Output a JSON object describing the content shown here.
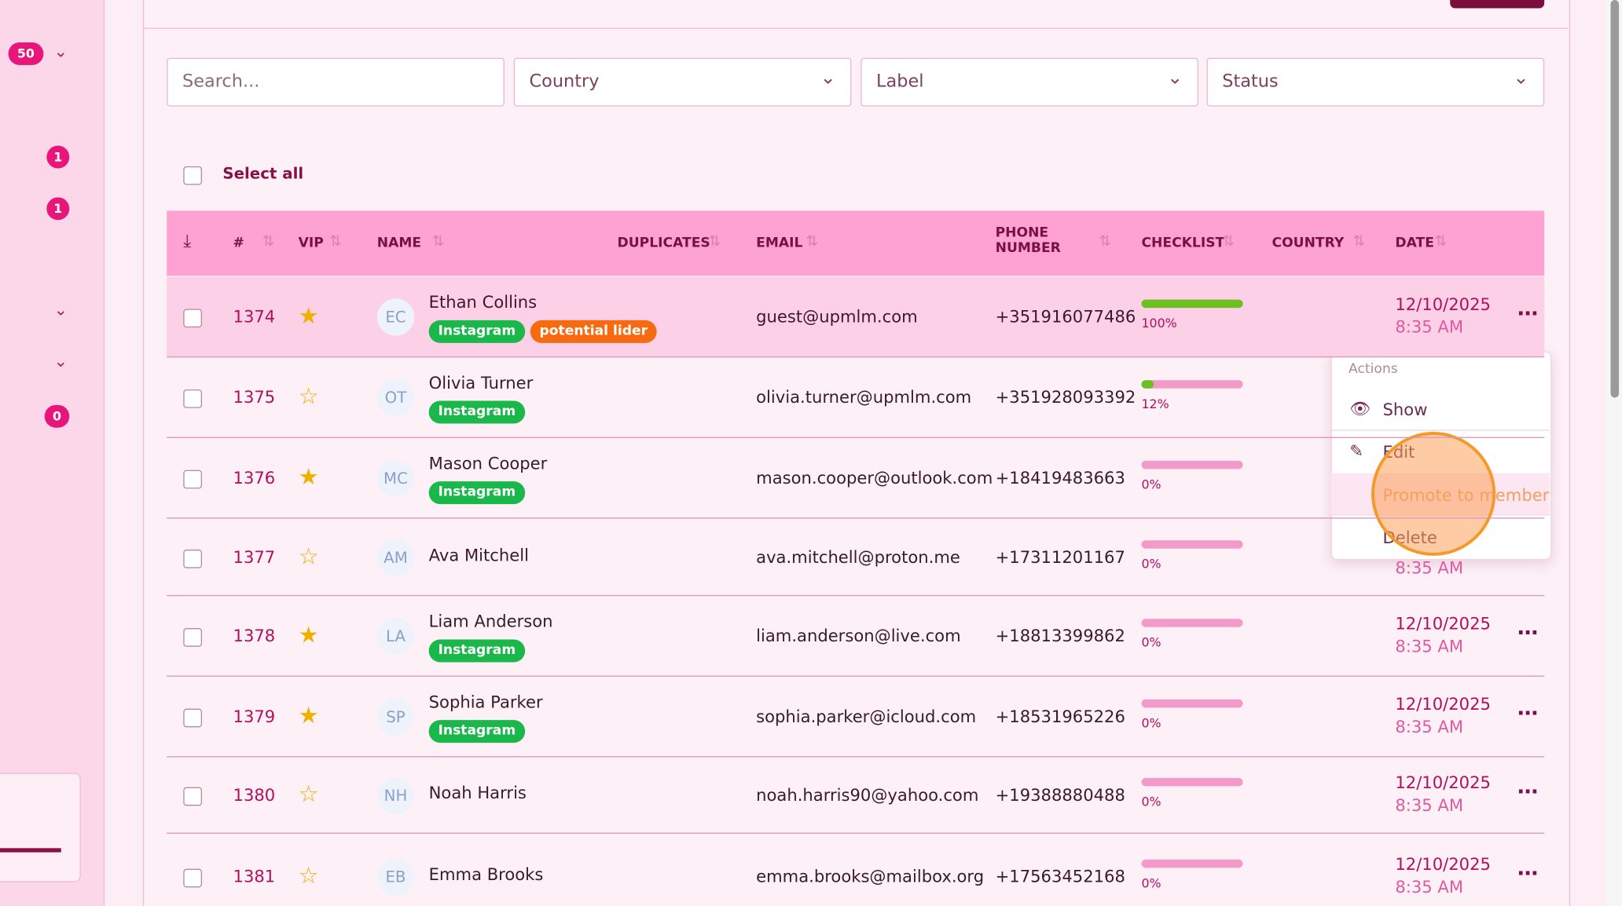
{
  "sidebar": {
    "per_page": "50",
    "badges": [
      "1",
      "1",
      "0"
    ]
  },
  "filters": {
    "search_placeholder": "Search...",
    "country": "Country",
    "label": "Label",
    "status": "Status"
  },
  "select_all": "Select all",
  "table": {
    "headers": [
      "#",
      "VIP",
      "NAME",
      "DUPLICATES",
      "EMAIL",
      "PHONE NUMBER",
      "CHECKLIST",
      "COUNTRY",
      "DATE"
    ],
    "rows": [
      {
        "id": "1374",
        "vip": true,
        "initials": "EC",
        "name": "Ethan Collins",
        "tags": [
          "Instagram",
          "potential lider"
        ],
        "email": "guest@upmlm.com",
        "phone": "+351916077486",
        "checklist": 100,
        "checklist_label": "100%",
        "date": "12/10/2025",
        "time": "8:35 AM"
      },
      {
        "id": "1375",
        "vip": false,
        "initials": "OT",
        "name": "Olivia Turner",
        "tags": [
          "Instagram"
        ],
        "email": "olivia.turner@upmlm.com",
        "phone": "+351928093392",
        "checklist": 12,
        "checklist_label": "12%",
        "date": null,
        "time": null
      },
      {
        "id": "1376",
        "vip": true,
        "initials": "MC",
        "name": "Mason Cooper",
        "tags": [
          "Instagram"
        ],
        "email": "mason.cooper@outlook.com",
        "phone": "+18419483663",
        "checklist": 0,
        "checklist_label": "0%",
        "date": null,
        "time": null
      },
      {
        "id": "1377",
        "vip": false,
        "initials": "AM",
        "name": "Ava Mitchell",
        "tags": [],
        "email": "ava.mitchell@proton.me",
        "phone": "+17311201167",
        "checklist": 0,
        "checklist_label": "0%",
        "date": null,
        "time": "8:35 AM"
      },
      {
        "id": "1378",
        "vip": true,
        "initials": "LA",
        "name": "Liam Anderson",
        "tags": [
          "Instagram"
        ],
        "email": "liam.anderson@live.com",
        "phone": "+18813399862",
        "checklist": 0,
        "checklist_label": "0%",
        "date": "12/10/2025",
        "time": "8:35 AM"
      },
      {
        "id": "1379",
        "vip": true,
        "initials": "SP",
        "name": "Sophia Parker",
        "tags": [
          "Instagram"
        ],
        "email": "sophia.parker@icloud.com",
        "phone": "+18531965226",
        "checklist": 0,
        "checklist_label": "0%",
        "date": "12/10/2025",
        "time": "8:35 AM"
      },
      {
        "id": "1380",
        "vip": false,
        "initials": "NH",
        "name": "Noah Harris",
        "tags": [],
        "email": "noah.harris90@yahoo.com",
        "phone": "+19388880488",
        "checklist": 0,
        "checklist_label": "0%",
        "date": "12/10/2025",
        "time": "8:35 AM"
      },
      {
        "id": "1381",
        "vip": false,
        "initials": "EB",
        "name": "Emma Brooks",
        "tags": [],
        "email": "emma.brooks@mailbox.org",
        "phone": "+17563452168",
        "checklist": 0,
        "checklist_label": "0%",
        "date": "12/10/2025",
        "time": "8:35 AM"
      }
    ]
  },
  "menu": {
    "title": "Actions",
    "items": [
      "Show",
      "Edit",
      "Promote to member",
      "Delete"
    ]
  }
}
